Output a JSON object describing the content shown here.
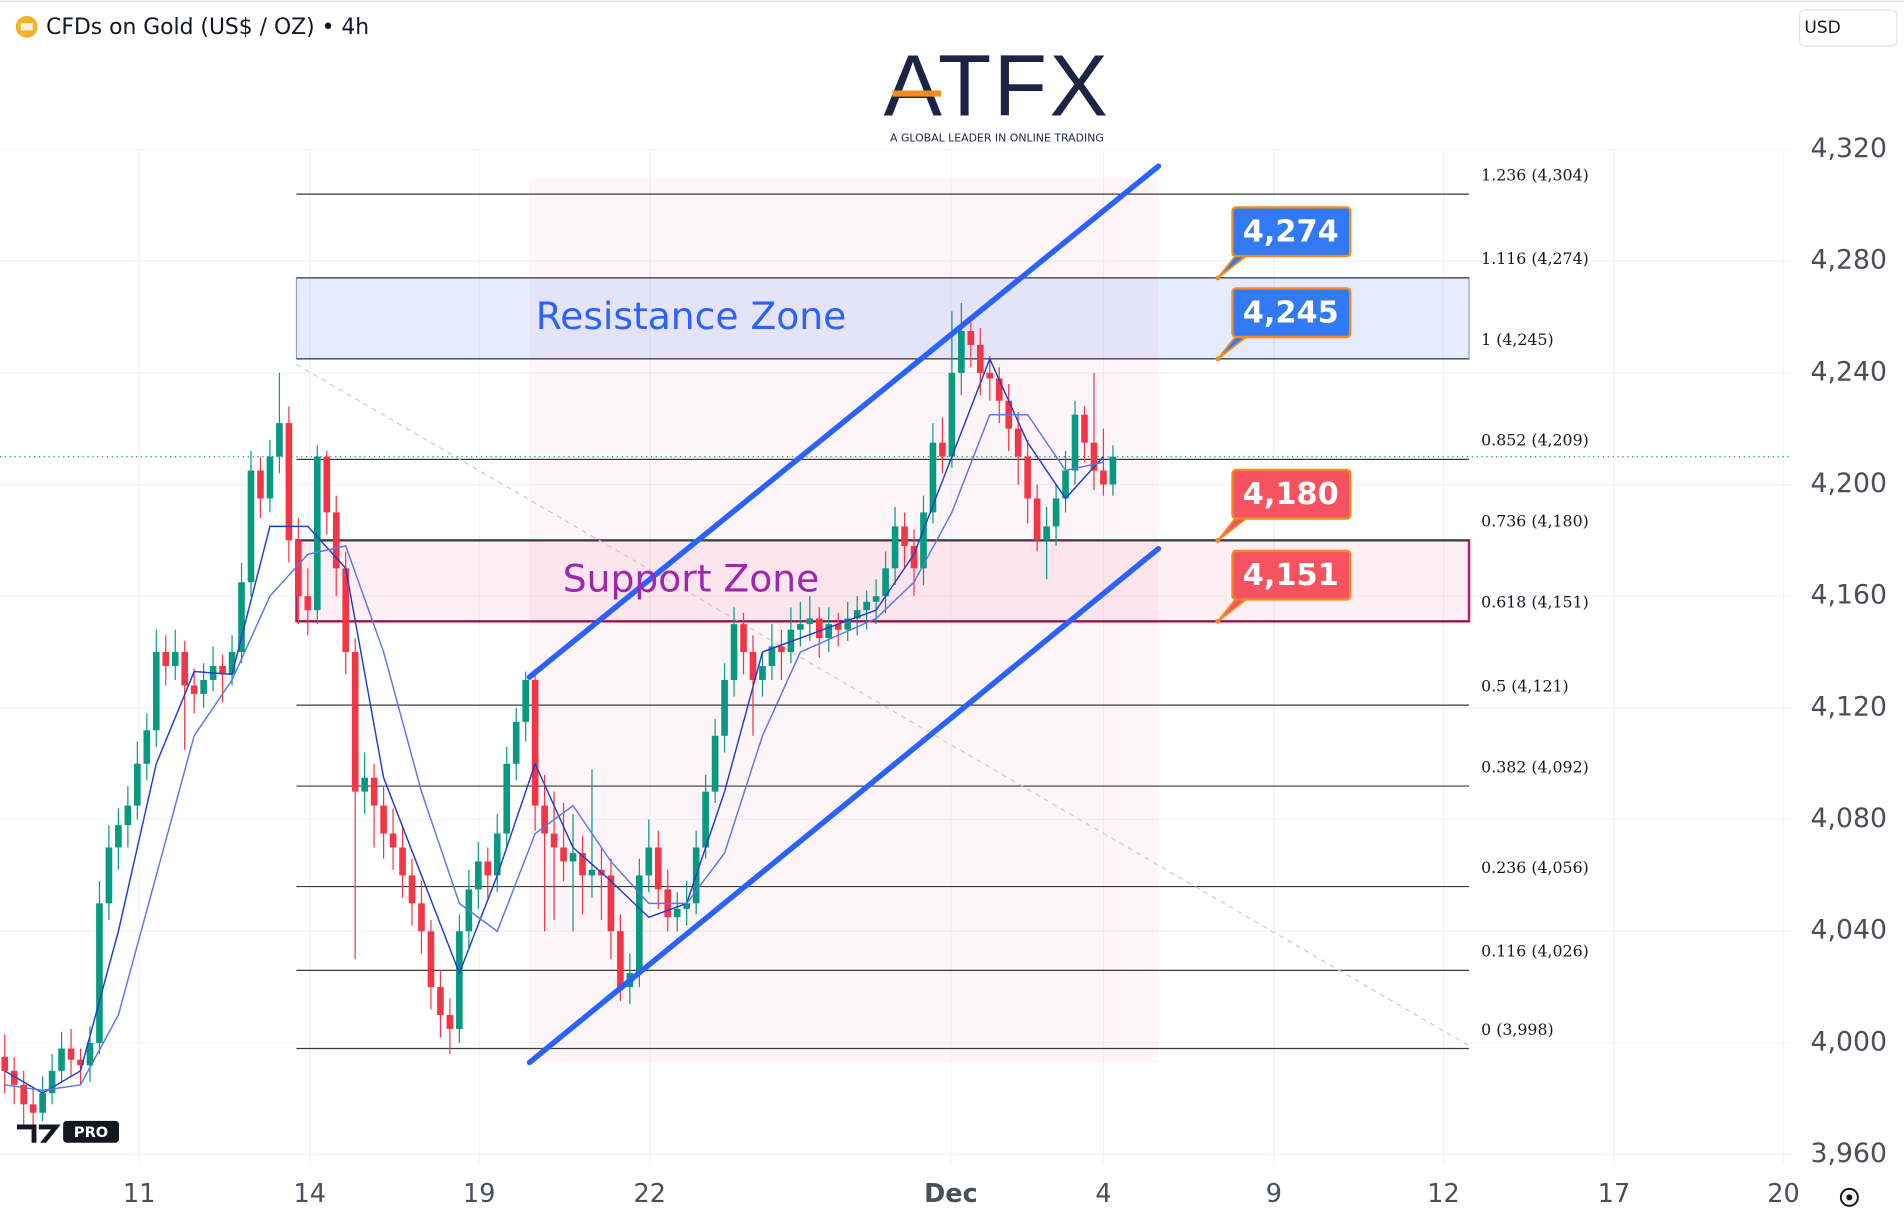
{
  "header": {
    "title": "CFDs on Gold (US$ / OZ) • 4h",
    "currency": "USD"
  },
  "logo": {
    "brand": "ATFX",
    "tagline": "A GLOBAL LEADER IN ONLINE TRADING"
  },
  "tv_badge": "PRO",
  "chart_data": {
    "type": "candlestick",
    "up_color": "#089981",
    "down_color": "#f23645",
    "xlim": [
      -0.5,
      188.6
    ],
    "ylim": [
      3956,
      4373.5
    ],
    "xticks": [
      {
        "value": 14.2,
        "label": "11"
      },
      {
        "value": 32.2,
        "label": "14"
      },
      {
        "value": 50.1,
        "label": "19"
      },
      {
        "value": 68.1,
        "label": "22"
      },
      {
        "value": 99.9,
        "label": "Dec"
      },
      {
        "value": 116.0,
        "label": "4"
      },
      {
        "value": 134.0,
        "label": "9"
      },
      {
        "value": 151.9,
        "label": "12"
      },
      {
        "value": 169.9,
        "label": "17"
      },
      {
        "value": 187.8,
        "label": "20"
      }
    ],
    "yticks": [
      {
        "value": 4320,
        "label": "4,320"
      },
      {
        "value": 4280,
        "label": "4,280"
      },
      {
        "value": 4240,
        "label": "4,240"
      },
      {
        "value": 4200,
        "label": "4,200"
      },
      {
        "value": 4160,
        "label": "4,160"
      },
      {
        "value": 4120,
        "label": "4,120"
      },
      {
        "value": 4080,
        "label": "4,080"
      },
      {
        "value": 4040,
        "label": "4,040"
      },
      {
        "value": 4000,
        "label": "4,000"
      },
      {
        "value": 3960,
        "label": "3,960"
      }
    ],
    "grid": true,
    "ohlc": [
      [
        3995,
        4003,
        3982,
        3990
      ],
      [
        3990,
        3995,
        3978,
        3985
      ],
      [
        3985,
        3990,
        3970,
        3978
      ],
      [
        3978,
        3984,
        3968,
        3975
      ],
      [
        3975,
        3988,
        3972,
        3982
      ],
      [
        3982,
        3996,
        3978,
        3990
      ],
      [
        3990,
        4004,
        3986,
        3998
      ],
      [
        3998,
        4005,
        3988,
        3994
      ],
      [
        3994,
        3998,
        3985,
        3992
      ],
      [
        3992,
        4006,
        3986,
        4000
      ],
      [
        4000,
        4058,
        3996,
        4050
      ],
      [
        4050,
        4078,
        4044,
        4070
      ],
      [
        4070,
        4084,
        4062,
        4078
      ],
      [
        4078,
        4092,
        4070,
        4085
      ],
      [
        4085,
        4108,
        4080,
        4100
      ],
      [
        4100,
        4118,
        4094,
        4112
      ],
      [
        4112,
        4148,
        4106,
        4140
      ],
      [
        4140,
        4146,
        4128,
        4135
      ],
      [
        4135,
        4148,
        4130,
        4140
      ],
      [
        4140,
        4144,
        4105,
        4128
      ],
      [
        4128,
        4134,
        4118,
        4125
      ],
      [
        4125,
        4136,
        4120,
        4130
      ],
      [
        4130,
        4142,
        4126,
        4135
      ],
      [
        4135,
        4139,
        4122,
        4132
      ],
      [
        4132,
        4146,
        4128,
        4140
      ],
      [
        4140,
        4172,
        4136,
        4165
      ],
      [
        4165,
        4212,
        4160,
        4205
      ],
      [
        4205,
        4210,
        4188,
        4195
      ],
      [
        4195,
        4216,
        4190,
        4210
      ],
      [
        4210,
        4240,
        4204,
        4222
      ],
      [
        4222,
        4228,
        4172,
        4180
      ],
      [
        4180,
        4188,
        4150,
        4160
      ],
      [
        4160,
        4170,
        4146,
        4155
      ],
      [
        4155,
        4214,
        4150,
        4210
      ],
      [
        4210,
        4212,
        4182,
        4190
      ],
      [
        4190,
        4196,
        4160,
        4170
      ],
      [
        4170,
        4176,
        4132,
        4140
      ],
      [
        4140,
        4145,
        4030,
        4090
      ],
      [
        4090,
        4104,
        4082,
        4095
      ],
      [
        4095,
        4100,
        4070,
        4085
      ],
      [
        4085,
        4092,
        4066,
        4075
      ],
      [
        4075,
        4084,
        4062,
        4070
      ],
      [
        4070,
        4078,
        4052,
        4060
      ],
      [
        4060,
        4066,
        4042,
        4050
      ],
      [
        4050,
        4058,
        4032,
        4040
      ],
      [
        4040,
        4044,
        4012,
        4020
      ],
      [
        4020,
        4026,
        4002,
        4010
      ],
      [
        4010,
        4016,
        3996,
        4005
      ],
      [
        4005,
        4046,
        4000,
        4040
      ],
      [
        4040,
        4062,
        4034,
        4055
      ],
      [
        4055,
        4072,
        4048,
        4065
      ],
      [
        4065,
        4070,
        4052,
        4060
      ],
      [
        4060,
        4082,
        4054,
        4075
      ],
      [
        4075,
        4106,
        4070,
        4100
      ],
      [
        4100,
        4120,
        4094,
        4115
      ],
      [
        4115,
        4133,
        4108,
        4130
      ],
      [
        4130,
        4134,
        4076,
        4085
      ],
      [
        4085,
        4096,
        4040,
        4075
      ],
      [
        4075,
        4090,
        4044,
        4070
      ],
      [
        4070,
        4086,
        4058,
        4065
      ],
      [
        4065,
        4082,
        4040,
        4068
      ],
      [
        4068,
        4074,
        4046,
        4060
      ],
      [
        4060,
        4098,
        4052,
        4062
      ],
      [
        4062,
        4070,
        4044,
        4060
      ],
      [
        4060,
        4066,
        4030,
        4040
      ],
      [
        4040,
        4046,
        4015,
        4020
      ],
      [
        4020,
        4032,
        4014,
        4025
      ],
      [
        4025,
        4066,
        4020,
        4060
      ],
      [
        4060,
        4080,
        4054,
        4070
      ],
      [
        4070,
        4076,
        4048,
        4055
      ],
      [
        4055,
        4062,
        4040,
        4045
      ],
      [
        4045,
        4054,
        4040,
        4048
      ],
      [
        4048,
        4058,
        4042,
        4050
      ],
      [
        4050,
        4076,
        4046,
        4070
      ],
      [
        4070,
        4096,
        4066,
        4090
      ],
      [
        4090,
        4116,
        4086,
        4110
      ],
      [
        4110,
        4136,
        4104,
        4130
      ],
      [
        4130,
        4156,
        4124,
        4150
      ],
      [
        4150,
        4154,
        4132,
        4140
      ],
      [
        4140,
        4146,
        4110,
        4130
      ],
      [
        4130,
        4140,
        4124,
        4135
      ],
      [
        4135,
        4150,
        4130,
        4142
      ],
      [
        4142,
        4148,
        4130,
        4140
      ],
      [
        4140,
        4156,
        4136,
        4148
      ],
      [
        4148,
        4158,
        4142,
        4150
      ],
      [
        4150,
        4160,
        4144,
        4152
      ],
      [
        4152,
        4156,
        4138,
        4145
      ],
      [
        4145,
        4156,
        4140,
        4150
      ],
      [
        4150,
        4154,
        4142,
        4148
      ],
      [
        4148,
        4158,
        4144,
        4152
      ],
      [
        4152,
        4160,
        4146,
        4155
      ],
      [
        4155,
        4162,
        4148,
        4158
      ],
      [
        4158,
        4166,
        4150,
        4160
      ],
      [
        4160,
        4176,
        4154,
        4170
      ],
      [
        4170,
        4192,
        4164,
        4185
      ],
      [
        4185,
        4190,
        4170,
        4178
      ],
      [
        4178,
        4184,
        4160,
        4170
      ],
      [
        4170,
        4196,
        4164,
        4190
      ],
      [
        4190,
        4222,
        4186,
        4215
      ],
      [
        4215,
        4224,
        4204,
        4210
      ],
      [
        4210,
        4262,
        4206,
        4240
      ],
      [
        4240,
        4265,
        4232,
        4255
      ],
      [
        4255,
        4260,
        4242,
        4250
      ],
      [
        4250,
        4256,
        4232,
        4240
      ],
      [
        4240,
        4246,
        4230,
        4238
      ],
      [
        4238,
        4242,
        4222,
        4230
      ],
      [
        4230,
        4236,
        4212,
        4220
      ],
      [
        4220,
        4226,
        4200,
        4210
      ],
      [
        4210,
        4216,
        4186,
        4195
      ],
      [
        4195,
        4200,
        4176,
        4180
      ],
      [
        4180,
        4192,
        4166,
        4185
      ],
      [
        4185,
        4200,
        4178,
        4195
      ],
      [
        4195,
        4212,
        4190,
        4205
      ],
      [
        4205,
        4230,
        4200,
        4225
      ],
      [
        4225,
        4228,
        4208,
        4215
      ],
      [
        4215,
        4240,
        4198,
        4205
      ],
      [
        4205,
        4220,
        4196,
        4200
      ],
      [
        4200,
        4214,
        4196,
        4210
      ]
    ],
    "moving_averages": [
      {
        "color": "#1e3fcf",
        "x": [
          0,
          4,
          8,
          12,
          16,
          20,
          24,
          28,
          32,
          36,
          40,
          44,
          48,
          52,
          56,
          60,
          64,
          68,
          72,
          76,
          80,
          84,
          88,
          92,
          96,
          100,
          104,
          108,
          112,
          116
        ],
        "values": [
          3990,
          3982,
          3990,
          4040,
          4100,
          4133,
          4132,
          4185,
          4185,
          4170,
          4095,
          4060,
          4025,
          4060,
          4100,
          4070,
          4058,
          4045,
          4050,
          4090,
          4140,
          4145,
          4150,
          4155,
          4175,
          4210,
          4245,
          4215,
          4195,
          4210
        ]
      },
      {
        "color": "#5a78e6",
        "x": [
          0,
          4,
          8,
          12,
          16,
          20,
          24,
          28,
          32,
          36,
          40,
          44,
          48,
          52,
          56,
          60,
          64,
          68,
          72,
          76,
          80,
          84,
          88,
          92,
          96,
          100,
          104,
          108,
          112,
          116
        ],
        "values": [
          3985,
          3983,
          3985,
          4010,
          4060,
          4110,
          4130,
          4160,
          4175,
          4178,
          4140,
          4090,
          4050,
          4040,
          4075,
          4085,
          4065,
          4050,
          4050,
          4068,
          4110,
          4140,
          4146,
          4152,
          4165,
          4190,
          4225,
          4225,
          4205,
          4208
        ]
      }
    ],
    "fib_x": [
      30.8,
      154.6
    ],
    "fib_levels": [
      {
        "value": 4304,
        "label": "1.236 (4,304)"
      },
      {
        "value": 4274,
        "label": "1.116 (4,274)"
      },
      {
        "value": 4245,
        "label": "1 (4,245)"
      },
      {
        "value": 4209,
        "label": "0.852 (4,209)"
      },
      {
        "value": 4180,
        "label": "0.736 (4,180)"
      },
      {
        "value": 4151,
        "label": "0.618 (4,151)"
      },
      {
        "value": 4121,
        "label": "0.5 (4,121)"
      },
      {
        "value": 4092,
        "label": "0.382 (4,092)"
      },
      {
        "value": 4056,
        "label": "0.236 (4,056)"
      },
      {
        "value": 4026,
        "label": "0.116 (4,026)"
      },
      {
        "value": 3998,
        "label": "0 (3,998)"
      }
    ],
    "zones": [
      {
        "label": "Resistance Zone",
        "range": [
          4245,
          4274
        ],
        "color": "#2962ff"
      },
      {
        "label": "Support Zone",
        "range": [
          4151,
          4180
        ],
        "color": "#9c27b0"
      }
    ],
    "callouts": [
      {
        "label": "4,274",
        "value": 4274,
        "color": "#3179f5"
      },
      {
        "label": "4,245",
        "value": 4245,
        "color": "#3179f5"
      },
      {
        "label": "4,180",
        "value": 4180,
        "color": "#f7525f"
      },
      {
        "label": "4,151",
        "value": 4151,
        "color": "#f7525f"
      }
    ],
    "channel": {
      "x": [
        55.4,
        121.8
      ],
      "upper": [
        4131,
        4314
      ],
      "lower": [
        3993,
        4177
      ],
      "color": "#2962ff"
    },
    "trend_line": {
      "x": [
        30.8,
        154.6
      ],
      "values": [
        4243,
        3999
      ]
    }
  }
}
